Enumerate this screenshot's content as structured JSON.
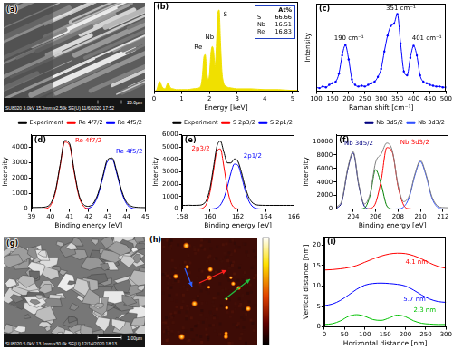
{
  "chart_data": [
    {
      "type": "area",
      "title": "(b)",
      "x_label": "Energy [keV]",
      "x": [
        0,
        0.1,
        0.2,
        0.3,
        0.4,
        0.5,
        0.6,
        0.7,
        0.8,
        0.9,
        1.0,
        1.2,
        1.4,
        1.6,
        1.7,
        1.75,
        1.8,
        1.85,
        1.9,
        1.95,
        2.0,
        2.05,
        2.1,
        2.15,
        2.2,
        2.25,
        2.3,
        2.35,
        2.4,
        2.45,
        2.5,
        2.6,
        2.8,
        3.0,
        3.5,
        4.0,
        4.5,
        5.0,
        5.2
      ],
      "series": [
        {
          "color": "#f0e000",
          "values": [
            0,
            0.02,
            0.12,
            0.05,
            0.03,
            0.1,
            0.04,
            0.03,
            0.02,
            0.02,
            0.02,
            0.02,
            0.03,
            0.04,
            0.08,
            0.2,
            0.42,
            0.45,
            0.25,
            0.15,
            0.2,
            0.45,
            0.55,
            0.5,
            0.3,
            0.55,
            0.95,
            1.0,
            0.6,
            0.25,
            0.12,
            0.06,
            0.04,
            0.03,
            0.03,
            0.02,
            0.02,
            0.01,
            0.01
          ]
        }
      ],
      "xlim": [
        0,
        5.2
      ],
      "xticks": [
        0,
        1,
        2,
        3,
        4,
        5
      ],
      "ylim": [
        0,
        1.1
      ],
      "tick_labels": "x",
      "grid": false,
      "annotations": [
        {
          "text": "Re",
          "x": 1.45,
          "y": 0.5
        },
        {
          "text": "Nb",
          "x": 1.85,
          "y": 0.62
        },
        {
          "text": "S",
          "x": 2.5,
          "y": 0.9
        }
      ],
      "table": {
        "title": "At%",
        "rows": [
          [
            "S",
            66.66
          ],
          [
            "Nb",
            16.51
          ],
          [
            "Re",
            16.83
          ]
        ]
      }
    },
    {
      "type": "line",
      "title": "(c)",
      "x_label": "Raman shift [cm⁻¹]",
      "y_label": "Intensity",
      "x": [
        100,
        110,
        120,
        130,
        140,
        150,
        160,
        170,
        180,
        190,
        200,
        210,
        220,
        230,
        240,
        250,
        260,
        270,
        280,
        290,
        300,
        310,
        320,
        330,
        340,
        350,
        360,
        370,
        380,
        390,
        400,
        410,
        420,
        430,
        440,
        450,
        460,
        470,
        480,
        490,
        500
      ],
      "series": [
        {
          "color": "#0000ff",
          "values": [
            0.05,
            0.04,
            0.06,
            0.05,
            0.08,
            0.1,
            0.12,
            0.22,
            0.45,
            0.58,
            0.4,
            0.15,
            0.08,
            0.06,
            0.07,
            0.06,
            0.08,
            0.1,
            0.12,
            0.18,
            0.28,
            0.5,
            0.7,
            0.82,
            0.85,
            0.97,
            0.6,
            0.25,
            0.2,
            0.42,
            0.57,
            0.45,
            0.2,
            0.12,
            0.1,
            0.08,
            0.07,
            0.06,
            0.06,
            0.05,
            0.05
          ]
        }
      ],
      "marker": "o",
      "xlim": [
        100,
        500
      ],
      "xticks": [
        100,
        150,
        200,
        250,
        300,
        350,
        400,
        450,
        500
      ],
      "ylim": [
        0,
        1.1
      ],
      "tick_labels": "x",
      "grid": false,
      "annotations": [
        {
          "text": "190 cm⁻¹",
          "x": 155,
          "y": 0.63
        },
        {
          "text": "351 cm⁻¹",
          "x": 315,
          "y": 1.0
        },
        {
          "text": "401 cm⁻¹",
          "x": 395,
          "y": 0.62
        }
      ]
    },
    {
      "type": "line",
      "title": "(d)",
      "x_label": "Binding energy [eV]",
      "y_label": "Intensity",
      "x": [
        39,
        39.25,
        39.5,
        39.75,
        40,
        40.25,
        40.5,
        40.75,
        41,
        41.25,
        41.5,
        41.75,
        42,
        42.25,
        42.5,
        42.75,
        43,
        43.25,
        43.5,
        43.75,
        44,
        44.25,
        44.5,
        44.75,
        45
      ],
      "series": [
        {
          "name": "Experiment",
          "color": "#000000",
          "values": [
            100,
            105,
            110,
            140,
            350,
            1140,
            2820,
            4420,
            4230,
            2460,
            900,
            280,
            180,
            370,
            990,
            2110,
            3190,
            3290,
            2360,
            1180,
            450,
            190,
            120,
            100,
            95
          ]
        },
        {
          "name": "Re 4f7/2",
          "color": "#ff0000",
          "values": [
            0,
            0,
            3,
            32,
            236,
            1035,
            2730,
            4320,
            4105,
            2340,
            803,
            165,
            20,
            2,
            0,
            0,
            0,
            0,
            0,
            0,
            0,
            0,
            0,
            0,
            0
          ]
        },
        {
          "name": "Re 4f5/2",
          "color": "#0000ff",
          "values": [
            0,
            0,
            0,
            0,
            0,
            0,
            0,
            0,
            0,
            0,
            1,
            7,
            53,
            263,
            882,
            2002,
            3076,
            3198,
            2250,
            1072,
            346,
            75,
            11,
            1,
            0
          ]
        }
      ],
      "xlim": [
        39,
        45
      ],
      "xticks": [
        39,
        40,
        41,
        42,
        43,
        44,
        45
      ],
      "ylim": [
        0,
        4800
      ],
      "yticks": [
        0,
        1000,
        2000,
        3000,
        4000
      ],
      "grid": false,
      "legend": "upper right",
      "annotations": [
        {
          "text": "Re 4f7/2",
          "x": 41.3,
          "y": 4200,
          "color": "#ff0000"
        },
        {
          "text": "Re 4f5/2",
          "x": 43.45,
          "y": 3500,
          "color": "#0000ff"
        }
      ]
    },
    {
      "type": "line",
      "title": "(e)",
      "x_label": "Binding energy [eV]",
      "y_label": "Intensity",
      "x": [
        158,
        158.25,
        158.5,
        158.75,
        159,
        159.25,
        159.5,
        159.75,
        160,
        160.25,
        160.5,
        160.75,
        161,
        161.25,
        161.5,
        161.75,
        162,
        162.25,
        162.5,
        162.75,
        163,
        163.25,
        163.5,
        163.75,
        164,
        164.25,
        164.5,
        164.75,
        165,
        165.25,
        165.5,
        165.75,
        166
      ],
      "series": [
        {
          "name": "Experiment",
          "color": "#000000",
          "values": [
            300,
            300,
            310,
            300,
            305,
            315,
            390,
            699,
            1639,
            3355,
            5057,
            5475,
            4582,
            3723,
            3718,
            4041,
            3854,
            2990,
            1890,
            1030,
            560,
            375,
            315,
            305,
            300,
            300,
            300,
            300,
            300,
            300,
            300,
            300,
            300
          ]
        },
        {
          "name": "S 2p3/2",
          "color": "#ff0000",
          "values": [
            0,
            0,
            0,
            0,
            1,
            11,
            80,
            398,
            1335,
            3033,
            4660,
            4846,
            3410,
            1623,
            522,
            114,
            17,
            2,
            0,
            0,
            0,
            0,
            0,
            0,
            0,
            0,
            0,
            0,
            0,
            0,
            0,
            0,
            0
          ]
        },
        {
          "name": "S 2p1/2",
          "color": "#0000ff",
          "values": [
            0,
            0,
            0,
            0,
            0,
            0,
            0,
            1,
            4,
            22,
            97,
            329,
            872,
            1800,
            2896,
            3627,
            3537,
            2688,
            1590,
            732,
            262,
            73,
            16,
            3,
            0,
            0,
            0,
            0,
            0,
            0,
            0,
            0,
            0
          ]
        }
      ],
      "xlim": [
        158,
        166
      ],
      "xticks": [
        158,
        160,
        162,
        164,
        166
      ],
      "ylim": [
        0,
        6000
      ],
      "yticks": [
        0,
        1000,
        2000,
        3000,
        4000,
        5000,
        6000
      ],
      "grid": false,
      "legend": "upper right",
      "annotations": [
        {
          "text": "2p3/2",
          "x": 158.7,
          "y": 4600,
          "color": "#ff0000"
        },
        {
          "text": "2p1/2",
          "x": 162.4,
          "y": 4000,
          "color": "#0000ff"
        }
      ]
    },
    {
      "type": "line",
      "title": "(f)",
      "x_label": "Binding energy [eV]",
      "y_label": "Intensity",
      "x": [
        202.5,
        203,
        203.5,
        204,
        204.5,
        205,
        205.5,
        206,
        206.5,
        207,
        207.5,
        208,
        208.5,
        209,
        209.5,
        210,
        210.5,
        211,
        211.5,
        212,
        212.5
      ],
      "series": [
        {
          "color": "#808080",
          "values": [
            267,
            1350,
            5926,
            8490,
            3696,
            765,
            2247,
            6912,
            8154,
            9760,
            8575,
            3589,
            1101,
            1991,
            5148,
            7200,
            5146,
            1945,
            507,
            227,
            201
          ]
        },
        {
          "name": "Nb 3d5/2",
          "color": "#000080",
          "values": [
            67,
            1150,
            5726,
            8290,
            3494,
            425,
            16,
            0,
            0,
            0,
            0,
            0,
            0,
            0,
            0,
            0,
            0,
            0,
            0,
            0,
            0
          ]
        },
        {
          "color": "#008000",
          "values": [
            0,
            0,
            0,
            0,
            2,
            137,
            1950,
            5814,
            3640,
            478,
            13,
            0,
            0,
            0,
            0,
            0,
            0,
            0,
            0,
            0,
            0
          ]
        },
        {
          "color": "#ff0000",
          "values": [
            0,
            0,
            0,
            0,
            0,
            3,
            81,
            898,
            4314,
            9082,
            8361,
            3362,
            594,
            46,
            2,
            0,
            0,
            0,
            0,
            0,
            0
          ]
        },
        {
          "name": "Nb 3d3/2",
          "color": "#3050ff",
          "values": [
            0,
            0,
            0,
            0,
            0,
            0,
            0,
            0,
            0,
            0,
            1,
            27,
            307,
            1745,
            4946,
            7000,
            4946,
            1745,
            307,
            27,
            1
          ]
        }
      ],
      "xlim": [
        202.5,
        212.5
      ],
      "xticks": [
        204,
        206,
        208,
        210,
        212
      ],
      "ylim": [
        0,
        11000
      ],
      "yticks": [
        0,
        2000,
        4000,
        6000,
        8000,
        10000
      ],
      "grid": false,
      "legend": "upper right",
      "annotations": [
        {
          "text": "Nb 3d5/2",
          "x": 203.2,
          "y": 9300,
          "color": "#000080"
        },
        {
          "text": "Nb 3d3/2",
          "x": 208.2,
          "y": 9400,
          "color": "#ff0000"
        }
      ]
    },
    {
      "type": "line",
      "title": "(i)",
      "x_label": "Horizontal distance [nm]",
      "y_label": "Vertical distance [nm]",
      "x": [
        0,
        20,
        40,
        60,
        80,
        100,
        120,
        140,
        160,
        180,
        200,
        220,
        240,
        260,
        280,
        300
      ],
      "series": [
        {
          "color": "#ff0000",
          "values": [
            13.9,
            14.0,
            14.2,
            14.5,
            15.0,
            15.8,
            16.6,
            17.3,
            17.8,
            18.0,
            17.9,
            17.4,
            16.6,
            15.6,
            14.8,
            14.3
          ]
        },
        {
          "color": "#0000ff",
          "values": [
            5.2,
            5.6,
            6.5,
            7.8,
            9.2,
            10.2,
            10.6,
            10.7,
            10.6,
            10.4,
            10.0,
            9.0,
            7.8,
            6.8,
            6.2,
            6.0
          ]
        },
        {
          "color": "#00c000",
          "values": [
            0.6,
            0.8,
            1.5,
            2.6,
            3.0,
            2.6,
            1.8,
            1.6,
            2.2,
            2.9,
            2.5,
            1.5,
            0.9,
            0.7,
            0.6,
            0.6
          ]
        }
      ],
      "xlim": [
        0,
        300
      ],
      "xticks": [
        0,
        50,
        100,
        150,
        200,
        250,
        300
      ],
      "ylim": [
        0,
        22
      ],
      "yticks": [
        0,
        5,
        10,
        15,
        20
      ],
      "grid": false,
      "annotations": [
        {
          "text": "4.1 nm",
          "x": 200,
          "y": 15.0,
          "color": "#ff0000"
        },
        {
          "text": "5.7 nm",
          "x": 195,
          "y": 6.0,
          "color": "#0000ff"
        },
        {
          "text": "2.3 nm",
          "x": 220,
          "y": 3.2,
          "color": "#00c000"
        }
      ]
    }
  ],
  "images": [
    {
      "label": "(a)",
      "info": "SU8020 3.0kV 15.2mm x2.50k SE(U) 11/6/2020 17:52",
      "scale": "20.0µm"
    },
    {
      "label": "(g)",
      "info": "SU8020 5.0kV 13.1mm x30.0k SE(U) 12/14/2020 18:13",
      "scale": "1.00µm"
    },
    {
      "label": "(h)"
    }
  ]
}
